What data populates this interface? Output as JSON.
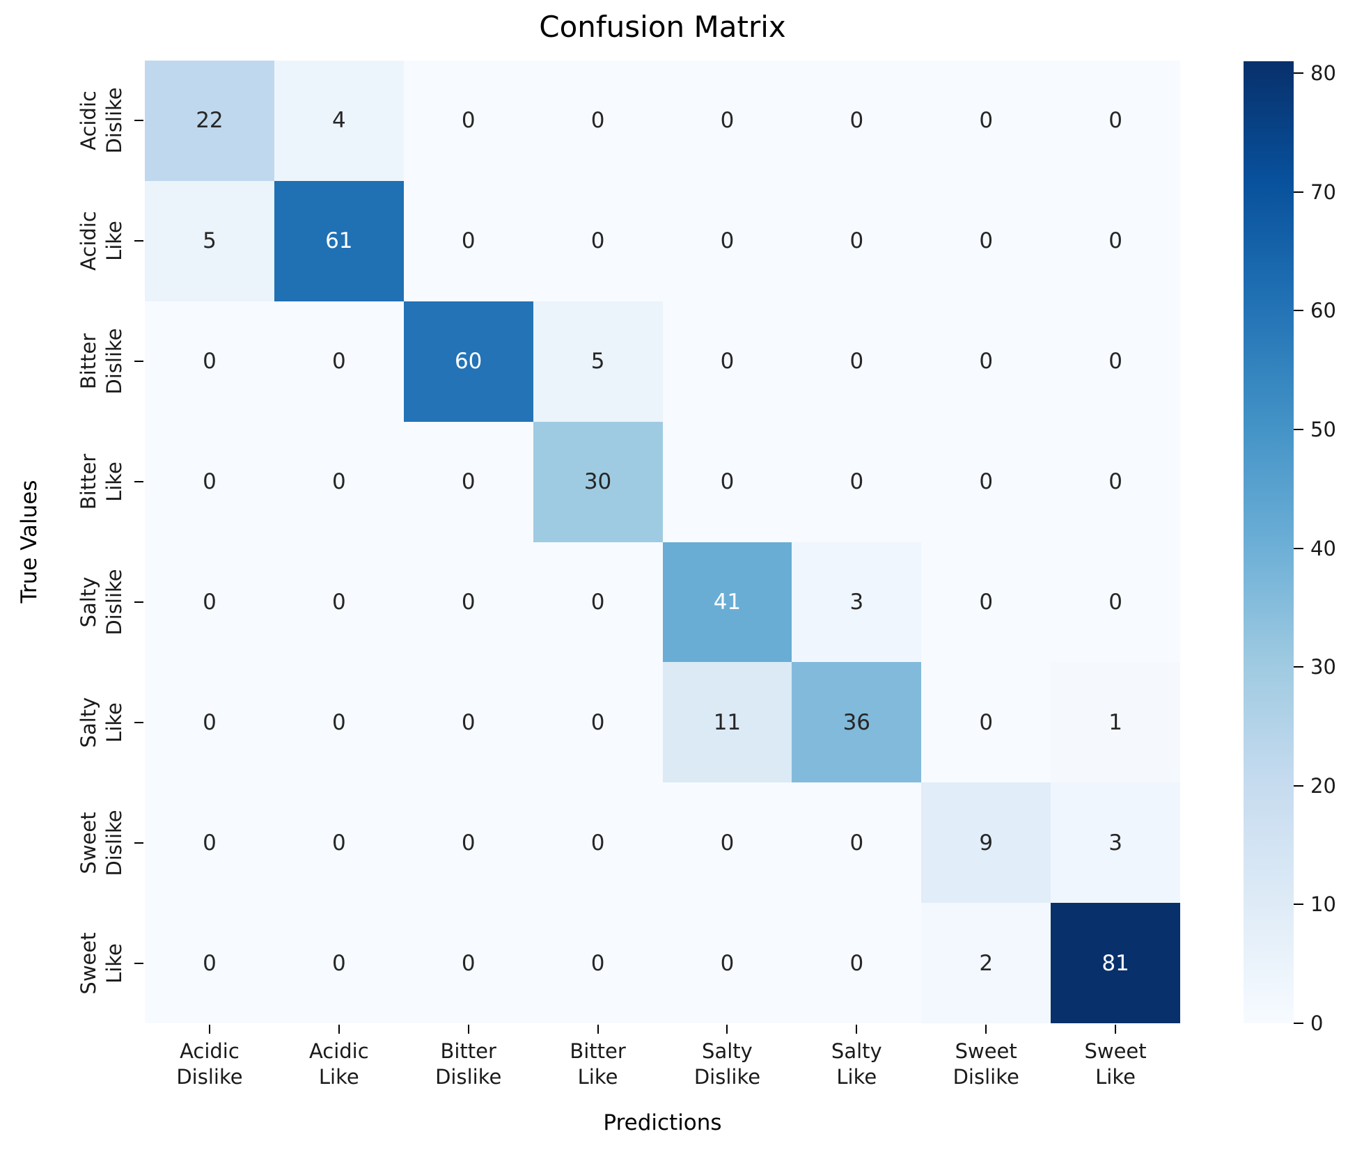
{
  "chart_data": {
    "type": "heatmap",
    "title": "Confusion Matrix",
    "xlabel": "Predictions",
    "ylabel": "True Values",
    "x_categories": [
      "Acidic Dislike",
      "Acidic Like",
      "Bitter Dislike",
      "Bitter Like",
      "Salty Dislike",
      "Salty Like",
      "Sweet Dislike",
      "Sweet Like"
    ],
    "y_categories": [
      "Acidic Dislike",
      "Acidic Like",
      "Bitter Dislike",
      "Bitter Like",
      "Salty Dislike",
      "Salty Like",
      "Sweet Dislike",
      "Sweet Like"
    ],
    "matrix": [
      [
        22,
        4,
        0,
        0,
        0,
        0,
        0,
        0
      ],
      [
        5,
        61,
        0,
        0,
        0,
        0,
        0,
        0
      ],
      [
        0,
        0,
        60,
        5,
        0,
        0,
        0,
        0
      ],
      [
        0,
        0,
        0,
        30,
        0,
        0,
        0,
        0
      ],
      [
        0,
        0,
        0,
        0,
        41,
        3,
        0,
        0
      ],
      [
        0,
        0,
        0,
        0,
        11,
        36,
        0,
        1
      ],
      [
        0,
        0,
        0,
        0,
        0,
        0,
        9,
        3
      ],
      [
        0,
        0,
        0,
        0,
        0,
        0,
        2,
        81
      ]
    ],
    "vmin": 0,
    "vmax": 81,
    "colormap": "Blues",
    "colorbar_ticks": [
      0,
      10,
      20,
      30,
      40,
      50,
      60,
      70,
      80
    ],
    "legend_position": "right",
    "grid": false,
    "colors": {
      "cmap_stops": [
        "#f7fbff",
        "#deebf7",
        "#c6dbef",
        "#9ecae1",
        "#6baed6",
        "#4292c6",
        "#2171b5",
        "#08519c",
        "#08306b"
      ],
      "annot_dark": "#262626",
      "annot_light": "#ffffff",
      "background": "#ffffff"
    }
  }
}
